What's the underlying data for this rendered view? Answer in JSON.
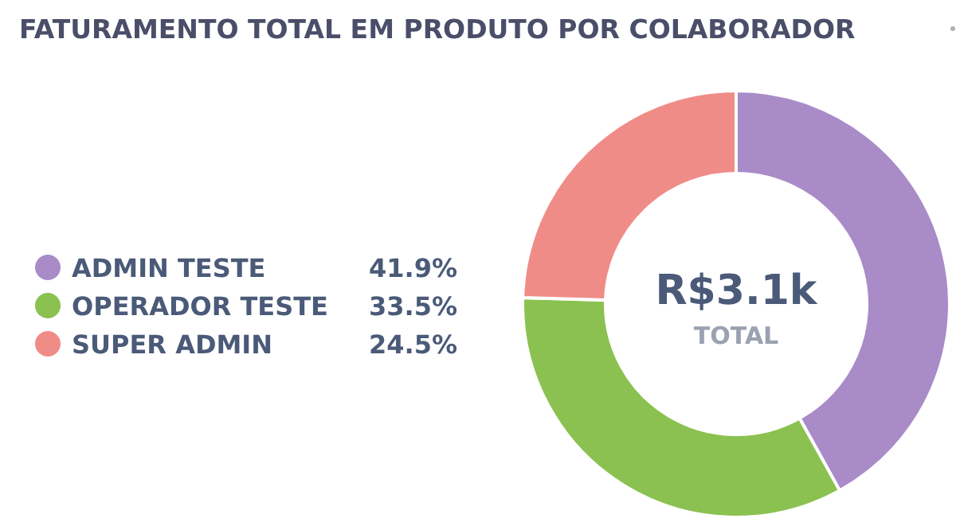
{
  "chart_data": {
    "type": "donut",
    "title": "FATURAMENTO TOTAL EM PRODUTO POR COLABORADOR",
    "categories": [
      "ADMIN TESTE",
      "OPERADOR TESTE",
      "SUPER ADMIN"
    ],
    "values": [
      41.9,
      33.5,
      24.5
    ],
    "value_labels": [
      "41.9%",
      "33.5%",
      "24.5%"
    ],
    "colors": [
      "#a98bc8",
      "#8bc150",
      "#f08c88"
    ],
    "annotations": [
      "R$3.1k",
      "TOTAL"
    ],
    "legend": "left"
  }
}
